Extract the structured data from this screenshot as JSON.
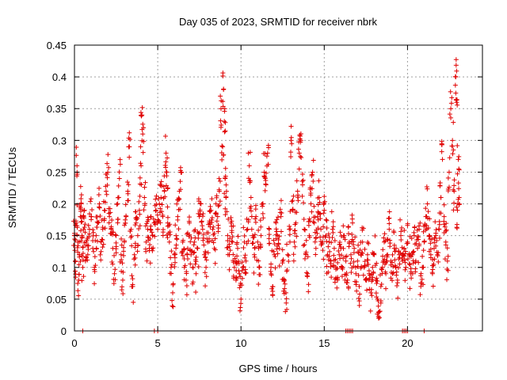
{
  "chart_data": {
    "type": "scatter",
    "title": "Day 035 of 2023, SRMTID for receiver nbrk",
    "xlabel": "GPS time / hours",
    "ylabel": "SRMTID / TECUs",
    "xlim": [
      0,
      24.5
    ],
    "ylim": [
      0,
      0.45
    ],
    "x_ticks": [
      0,
      5,
      10,
      15,
      20
    ],
    "x_tick_labels": [
      "0",
      "5",
      "10",
      "15",
      "20"
    ],
    "y_ticks": [
      0,
      0.05,
      0.1,
      0.15,
      0.2,
      0.25,
      0.3,
      0.35,
      0.4,
      0.45
    ],
    "y_tick_labels": [
      "0",
      "0.05",
      "0.1",
      "0.15",
      "0.2",
      "0.25",
      "0.3",
      "0.35",
      "0.4",
      "0.45"
    ],
    "grid": true,
    "marker": "+",
    "color": "#e00000",
    "series": [
      {
        "name": "SRMTID",
        "points": [
          [
            0.0,
            0.15
          ],
          [
            0.05,
            0.11
          ],
          [
            0.1,
            0.17
          ],
          [
            0.15,
            0.26
          ],
          [
            0.2,
            0.14
          ],
          [
            0.25,
            0.08
          ],
          [
            0.3,
            0.12
          ],
          [
            0.35,
            0.18
          ],
          [
            0.4,
            0.2
          ],
          [
            0.45,
            0.15
          ],
          [
            0.5,
            0.1
          ],
          [
            0.55,
            0.16
          ],
          [
            0.6,
            0.19
          ],
          [
            0.7,
            0.14
          ],
          [
            0.8,
            0.12
          ],
          [
            0.9,
            0.16
          ],
          [
            1.0,
            0.18
          ],
          [
            1.1,
            0.13
          ],
          [
            1.2,
            0.1
          ],
          [
            1.3,
            0.15
          ],
          [
            1.4,
            0.17
          ],
          [
            1.5,
            0.2
          ],
          [
            1.6,
            0.14
          ],
          [
            1.7,
            0.16
          ],
          [
            1.8,
            0.19
          ],
          [
            1.9,
            0.22
          ],
          [
            2.0,
            0.25
          ],
          [
            2.1,
            0.18
          ],
          [
            2.2,
            0.16
          ],
          [
            2.3,
            0.13
          ],
          [
            2.4,
            0.09
          ],
          [
            2.5,
            0.15
          ],
          [
            2.6,
            0.2
          ],
          [
            2.7,
            0.24
          ],
          [
            2.8,
            0.12
          ],
          [
            2.9,
            0.08
          ],
          [
            3.0,
            0.14
          ],
          [
            3.1,
            0.18
          ],
          [
            3.2,
            0.22
          ],
          [
            3.3,
            0.29
          ],
          [
            3.4,
            0.16
          ],
          [
            3.5,
            0.07
          ],
          [
            3.6,
            0.12
          ],
          [
            3.7,
            0.17
          ],
          [
            3.8,
            0.15
          ],
          [
            3.9,
            0.19
          ],
          [
            4.0,
            0.26
          ],
          [
            4.05,
            0.34
          ],
          [
            4.1,
            0.31
          ],
          [
            4.2,
            0.21
          ],
          [
            4.3,
            0.14
          ],
          [
            4.4,
            0.16
          ],
          [
            4.5,
            0.13
          ],
          [
            4.6,
            0.18
          ],
          [
            4.7,
            0.15
          ],
          [
            4.8,
            0.17
          ],
          [
            4.9,
            0.19
          ],
          [
            5.0,
            0.16
          ],
          [
            5.1,
            0.2
          ],
          [
            5.2,
            0.21
          ],
          [
            5.3,
            0.18
          ],
          [
            5.4,
            0.22
          ],
          [
            5.5,
            0.28
          ],
          [
            5.55,
            0.25
          ],
          [
            5.6,
            0.17
          ],
          [
            5.7,
            0.14
          ],
          [
            5.8,
            0.1
          ],
          [
            5.9,
            0.06
          ],
          [
            6.0,
            0.12
          ],
          [
            6.1,
            0.15
          ],
          [
            6.2,
            0.18
          ],
          [
            6.3,
            0.22
          ],
          [
            6.4,
            0.25
          ],
          [
            6.5,
            0.14
          ],
          [
            6.6,
            0.1
          ],
          [
            6.7,
            0.08
          ],
          [
            6.8,
            0.13
          ],
          [
            6.9,
            0.17
          ],
          [
            7.0,
            0.12
          ],
          [
            7.1,
            0.1
          ],
          [
            7.2,
            0.14
          ],
          [
            7.3,
            0.09
          ],
          [
            7.4,
            0.13
          ],
          [
            7.5,
            0.18
          ],
          [
            7.6,
            0.2
          ],
          [
            7.7,
            0.16
          ],
          [
            7.8,
            0.12
          ],
          [
            7.9,
            0.1
          ],
          [
            8.0,
            0.14
          ],
          [
            8.1,
            0.17
          ],
          [
            8.2,
            0.19
          ],
          [
            8.3,
            0.16
          ],
          [
            8.4,
            0.13
          ],
          [
            8.5,
            0.2
          ],
          [
            8.6,
            0.18
          ],
          [
            8.7,
            0.22
          ],
          [
            8.8,
            0.35
          ],
          [
            8.9,
            0.29
          ],
          [
            8.95,
            0.38
          ],
          [
            9.0,
            0.33
          ],
          [
            9.05,
            0.24
          ],
          [
            9.1,
            0.21
          ],
          [
            9.2,
            0.15
          ],
          [
            9.3,
            0.12
          ],
          [
            9.4,
            0.17
          ],
          [
            9.5,
            0.14
          ],
          [
            9.6,
            0.1
          ],
          [
            9.7,
            0.08
          ],
          [
            9.8,
            0.13
          ],
          [
            9.9,
            0.09
          ],
          [
            10.0,
            0.05
          ],
          [
            10.1,
            0.1
          ],
          [
            10.2,
            0.14
          ],
          [
            10.3,
            0.11
          ],
          [
            10.4,
            0.16
          ],
          [
            10.5,
            0.26
          ],
          [
            10.6,
            0.21
          ],
          [
            10.7,
            0.15
          ],
          [
            10.8,
            0.12
          ],
          [
            10.9,
            0.18
          ],
          [
            11.0,
            0.14
          ],
          [
            11.1,
            0.1
          ],
          [
            11.2,
            0.15
          ],
          [
            11.3,
            0.2
          ],
          [
            11.4,
            0.25
          ],
          [
            11.5,
            0.23
          ],
          [
            11.6,
            0.28
          ],
          [
            11.7,
            0.16
          ],
          [
            11.8,
            0.1
          ],
          [
            11.9,
            0.07
          ],
          [
            12.0,
            0.12
          ],
          [
            12.1,
            0.17
          ],
          [
            12.2,
            0.15
          ],
          [
            12.3,
            0.13
          ],
          [
            12.4,
            0.18
          ],
          [
            12.5,
            0.11
          ],
          [
            12.6,
            0.08
          ],
          [
            12.7,
            0.06
          ],
          [
            12.8,
            0.12
          ],
          [
            12.9,
            0.16
          ],
          [
            13.0,
            0.3
          ],
          [
            13.1,
            0.19
          ],
          [
            13.2,
            0.14
          ],
          [
            13.3,
            0.17
          ],
          [
            13.4,
            0.22
          ],
          [
            13.5,
            0.28
          ],
          [
            13.6,
            0.3
          ],
          [
            13.7,
            0.23
          ],
          [
            13.8,
            0.16
          ],
          [
            13.9,
            0.12
          ],
          [
            14.0,
            0.09
          ],
          [
            14.1,
            0.15
          ],
          [
            14.2,
            0.2
          ],
          [
            14.3,
            0.25
          ],
          [
            14.4,
            0.17
          ],
          [
            14.5,
            0.13
          ],
          [
            14.6,
            0.18
          ],
          [
            14.7,
            0.21
          ],
          [
            14.8,
            0.16
          ],
          [
            14.9,
            0.14
          ],
          [
            15.0,
            0.19
          ],
          [
            15.1,
            0.15
          ],
          [
            15.2,
            0.12
          ],
          [
            15.3,
            0.14
          ],
          [
            15.4,
            0.11
          ],
          [
            15.5,
            0.16
          ],
          [
            15.6,
            0.13
          ],
          [
            15.7,
            0.1
          ],
          [
            15.8,
            0.08
          ],
          [
            15.9,
            0.12
          ],
          [
            16.0,
            0.13
          ],
          [
            16.1,
            0.1
          ],
          [
            16.2,
            0.15
          ],
          [
            16.3,
            0.11
          ],
          [
            16.4,
            0.08
          ],
          [
            16.5,
            0.14
          ],
          [
            16.6,
            0.12
          ],
          [
            16.7,
            0.17
          ],
          [
            16.8,
            0.13
          ],
          [
            16.9,
            0.09
          ],
          [
            17.0,
            0.11
          ],
          [
            17.1,
            0.07
          ],
          [
            17.2,
            0.12
          ],
          [
            17.3,
            0.14
          ],
          [
            17.4,
            0.1
          ],
          [
            17.5,
            0.08
          ],
          [
            17.6,
            0.12
          ],
          [
            17.7,
            0.09
          ],
          [
            17.8,
            0.06
          ],
          [
            17.9,
            0.1
          ],
          [
            18.0,
            0.12
          ],
          [
            18.1,
            0.08
          ],
          [
            18.2,
            0.05
          ],
          [
            18.3,
            0.03
          ],
          [
            18.4,
            0.07
          ],
          [
            18.5,
            0.1
          ],
          [
            18.6,
            0.14
          ],
          [
            18.7,
            0.09
          ],
          [
            18.8,
            0.12
          ],
          [
            18.9,
            0.16
          ],
          [
            19.0,
            0.11
          ],
          [
            19.1,
            0.09
          ],
          [
            19.2,
            0.13
          ],
          [
            19.3,
            0.1
          ],
          [
            19.4,
            0.08
          ],
          [
            19.5,
            0.12
          ],
          [
            19.6,
            0.15
          ],
          [
            19.7,
            0.11
          ],
          [
            19.8,
            0.13
          ],
          [
            19.9,
            0.1
          ],
          [
            20.0,
            0.14
          ],
          [
            20.1,
            0.12
          ],
          [
            20.2,
            0.09
          ],
          [
            20.3,
            0.12
          ],
          [
            20.4,
            0.15
          ],
          [
            20.5,
            0.11
          ],
          [
            20.6,
            0.13
          ],
          [
            20.7,
            0.16
          ],
          [
            20.8,
            0.07
          ],
          [
            20.9,
            0.1
          ],
          [
            21.0,
            0.14
          ],
          [
            21.1,
            0.18
          ],
          [
            21.2,
            0.2
          ],
          [
            21.3,
            0.15
          ],
          [
            21.4,
            0.12
          ],
          [
            21.5,
            0.09
          ],
          [
            21.6,
            0.13
          ],
          [
            21.7,
            0.15
          ],
          [
            21.8,
            0.12
          ],
          [
            21.9,
            0.16
          ],
          [
            22.0,
            0.21
          ],
          [
            22.1,
            0.27
          ],
          [
            22.2,
            0.18
          ],
          [
            22.3,
            0.14
          ],
          [
            22.4,
            0.11
          ],
          [
            22.5,
            0.25
          ],
          [
            22.6,
            0.35
          ],
          [
            22.7,
            0.3
          ],
          [
            22.8,
            0.22
          ],
          [
            22.9,
            0.4
          ],
          [
            22.95,
            0.36
          ],
          [
            23.0,
            0.19
          ],
          [
            23.05,
            0.27
          ],
          [
            23.1,
            0.21
          ]
        ]
      }
    ],
    "zero_points_x": [
      0.5,
      4.8,
      5.0,
      16.3,
      16.4,
      16.5,
      16.6,
      16.7,
      19.7,
      19.8,
      19.9,
      20.0,
      21.0
    ]
  }
}
